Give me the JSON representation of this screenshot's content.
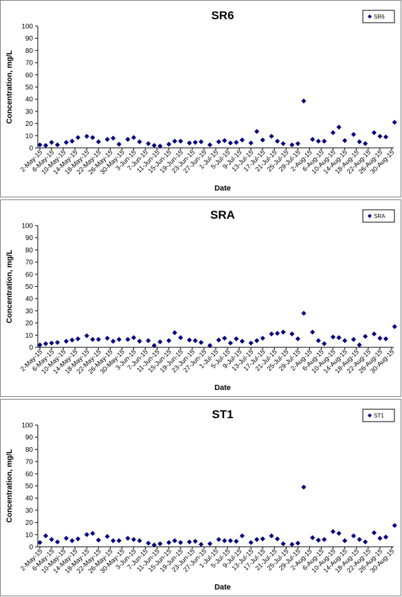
{
  "chart_data": [
    {
      "type": "scatter",
      "title": "SR6",
      "xlabel": "Date",
      "ylabel": "Concentration, mg/L",
      "ylim": [
        0,
        100
      ],
      "yticks": [
        0,
        10,
        20,
        30,
        40,
        50,
        60,
        70,
        80,
        90,
        100
      ],
      "grid": false,
      "legend_position": "top-right",
      "xticks": [
        "2-May-15",
        "6-May-15",
        "10-May-15",
        "14-May-15",
        "18-May-15",
        "22-May-15",
        "26-May-15",
        "30-May-15",
        "3-Jun-15",
        "7-Jun-15",
        "11-Jun-15",
        "15-Jun-15",
        "19-Jun-15",
        "23-Jun-15",
        "27-Jun-15",
        "1-Jul-15",
        "5-Jul-15",
        "9-Jul-15",
        "13-Jul-15",
        "17-Jul-15",
        "21-Jul-15",
        "25-Jul-15",
        "29-Jul-15",
        "2-Aug-15",
        "6-Aug-15",
        "10-Aug-15",
        "14-Aug-15",
        "18-Aug-15",
        "22-Aug-15",
        "26-Aug-15",
        "30-Aug-15"
      ],
      "series": [
        {
          "name": "SR6",
          "color": "#000080",
          "marker": "diamond",
          "points": [
            [
              "2-May-15",
              2.5
            ],
            [
              "4-May-15",
              2
            ],
            [
              "6-May-15",
              4.5
            ],
            [
              "8-May-15",
              2.5
            ],
            [
              "11-May-15",
              4.5
            ],
            [
              "13-May-15",
              5.5
            ],
            [
              "15-May-15",
              8.5
            ],
            [
              "18-May-15",
              9.5
            ],
            [
              "20-May-15",
              8.5
            ],
            [
              "22-May-15",
              5
            ],
            [
              "25-May-15",
              7
            ],
            [
              "27-May-15",
              8
            ],
            [
              "29-May-15",
              3
            ],
            [
              "1-Jun-15",
              7
            ],
            [
              "3-Jun-15",
              8.5
            ],
            [
              "5-Jun-15",
              5
            ],
            [
              "8-Jun-15",
              3.5
            ],
            [
              "10-Jun-15",
              2
            ],
            [
              "12-Jun-15",
              1.5
            ],
            [
              "15-Jun-15",
              3
            ],
            [
              "17-Jun-15",
              5.5
            ],
            [
              "19-Jun-15",
              5.5
            ],
            [
              "22-Jun-15",
              4
            ],
            [
              "24-Jun-15",
              4.5
            ],
            [
              "26-Jun-15",
              5
            ],
            [
              "29-Jun-15",
              2.5
            ],
            [
              "2-Jul-15",
              5
            ],
            [
              "4-Jul-15",
              6
            ],
            [
              "6-Jul-15",
              4
            ],
            [
              "8-Jul-15",
              4.5
            ],
            [
              "10-Jul-15",
              6.5
            ],
            [
              "13-Jul-15",
              4
            ],
            [
              "15-Jul-15",
              13.5
            ],
            [
              "17-Jul-15",
              6.5
            ],
            [
              "20-Jul-15",
              9.5
            ],
            [
              "22-Jul-15",
              5.5
            ],
            [
              "24-Jul-15",
              3.5
            ],
            [
              "27-Jul-15",
              2.5
            ],
            [
              "29-Jul-15",
              3.5
            ],
            [
              "31-Jul-15",
              38.5
            ],
            [
              "3-Aug-15",
              7
            ],
            [
              "5-Aug-15",
              5.5
            ],
            [
              "7-Aug-15",
              5.5
            ],
            [
              "10-Aug-15",
              12.5
            ],
            [
              "12-Aug-15",
              17
            ],
            [
              "14-Aug-15",
              6
            ],
            [
              "17-Aug-15",
              11
            ],
            [
              "19-Aug-15",
              5
            ],
            [
              "21-Aug-15",
              3.5
            ],
            [
              "24-Aug-15",
              12.5
            ],
            [
              "26-Aug-15",
              9.5
            ],
            [
              "28-Aug-15",
              9
            ],
            [
              "31-Aug-15",
              21
            ]
          ]
        }
      ]
    },
    {
      "type": "scatter",
      "title": "SRA",
      "xlabel": "Date",
      "ylabel": "Concentration, mg/L",
      "ylim": [
        0,
        100
      ],
      "yticks": [
        0,
        10,
        20,
        30,
        40,
        50,
        60,
        70,
        80,
        90,
        100
      ],
      "grid": false,
      "legend_position": "top-right",
      "xticks": [
        "2-May-15",
        "6-May-15",
        "10-May-15",
        "14-May-15",
        "18-May-15",
        "22-May-15",
        "26-May-15",
        "30-May-15",
        "3-Jun-15",
        "7-Jun-15",
        "11-Jun-15",
        "15-Jun-15",
        "19-Jun-15",
        "23-Jun-15",
        "27-Jun-15",
        "1-Jul-15",
        "5-Jul-15",
        "9-Jul-15",
        "13-Jul-15",
        "17-Jul-15",
        "21-Jul-15",
        "25-Jul-15",
        "29-Jul-15",
        "2-Aug-15",
        "6-Aug-15",
        "10-Aug-15",
        "14-Aug-15",
        "18-Aug-15",
        "22-Aug-15",
        "26-Aug-15",
        "30-Aug-15"
      ],
      "series": [
        {
          "name": "SRA",
          "color": "#000080",
          "marker": "diamond",
          "points": [
            [
              "2-May-15",
              2
            ],
            [
              "4-May-15",
              3
            ],
            [
              "6-May-15",
              3.5
            ],
            [
              "8-May-15",
              4
            ],
            [
              "11-May-15",
              5
            ],
            [
              "13-May-15",
              6
            ],
            [
              "15-May-15",
              7
            ],
            [
              "18-May-15",
              9.5
            ],
            [
              "20-May-15",
              6.5
            ],
            [
              "22-May-15",
              6.5
            ],
            [
              "25-May-15",
              7.5
            ],
            [
              "27-May-15",
              5
            ],
            [
              "29-May-15",
              6.5
            ],
            [
              "1-Jun-15",
              6.5
            ],
            [
              "3-Jun-15",
              8
            ],
            [
              "5-Jun-15",
              5
            ],
            [
              "8-Jun-15",
              5.5
            ],
            [
              "10-Jun-15",
              1.5
            ],
            [
              "12-Jun-15",
              4.5
            ],
            [
              "15-Jun-15",
              5.5
            ],
            [
              "17-Jun-15",
              12
            ],
            [
              "19-Jun-15",
              8
            ],
            [
              "22-Jun-15",
              6
            ],
            [
              "24-Jun-15",
              5.5
            ],
            [
              "26-Jun-15",
              4
            ],
            [
              "29-Jun-15",
              1.5
            ],
            [
              "2-Jul-15",
              6
            ],
            [
              "4-Jul-15",
              7.5
            ],
            [
              "6-Jul-15",
              3.5
            ],
            [
              "8-Jul-15",
              7
            ],
            [
              "10-Jul-15",
              5
            ],
            [
              "13-Jul-15",
              3.5
            ],
            [
              "15-Jul-15",
              5.5
            ],
            [
              "17-Jul-15",
              7.5
            ],
            [
              "20-Jul-15",
              11
            ],
            [
              "22-Jul-15",
              11.5
            ],
            [
              "24-Jul-15",
              12.5
            ],
            [
              "27-Jul-15",
              11
            ],
            [
              "29-Jul-15",
              7
            ],
            [
              "31-Jul-15",
              28
            ],
            [
              "3-Aug-15",
              12.5
            ],
            [
              "5-Aug-15",
              5.5
            ],
            [
              "7-Aug-15",
              3
            ],
            [
              "10-Aug-15",
              8.5
            ],
            [
              "12-Aug-15",
              8
            ],
            [
              "14-Aug-15",
              5.5
            ],
            [
              "17-Aug-15",
              6.5
            ],
            [
              "19-Aug-15",
              2
            ],
            [
              "21-Aug-15",
              9
            ],
            [
              "24-Aug-15",
              11
            ],
            [
              "26-Aug-15",
              7.5
            ],
            [
              "28-Aug-15",
              7
            ],
            [
              "31-Aug-15",
              17
            ]
          ]
        }
      ]
    },
    {
      "type": "scatter",
      "title": "ST1",
      "xlabel": "Date",
      "ylabel": "Concentration, mg/L",
      "ylim": [
        0,
        100
      ],
      "yticks": [
        0,
        10,
        20,
        30,
        40,
        50,
        60,
        70,
        80,
        90,
        100
      ],
      "grid": false,
      "legend_position": "top-right",
      "xticks": [
        "2-May-15",
        "6-May-15",
        "10-May-15",
        "14-May-15",
        "18-May-15",
        "22-May-15",
        "26-May-15",
        "30-May-15",
        "3-Jun-15",
        "7-Jun-15",
        "11-Jun-15",
        "15-Jun-15",
        "19-Jun-15",
        "23-Jun-15",
        "27-Jun-15",
        "1-Jul-15",
        "5-Jul-15",
        "9-Jul-15",
        "13-Jul-15",
        "17-Jul-15",
        "21-Jul-15",
        "25-Jul-15",
        "29-Jul-15",
        "2-Aug-15",
        "6-Aug-15",
        "10-Aug-15",
        "14-Aug-15",
        "18-Aug-15",
        "22-Aug-15",
        "26-Aug-15",
        "30-Aug-15"
      ],
      "series": [
        {
          "name": "ST1",
          "color": "#000080",
          "marker": "diamond",
          "points": [
            [
              "2-May-15",
              3.5
            ],
            [
              "4-May-15",
              9
            ],
            [
              "6-May-15",
              6
            ],
            [
              "8-May-15",
              4
            ],
            [
              "11-May-15",
              7
            ],
            [
              "13-May-15",
              5
            ],
            [
              "15-May-15",
              6.5
            ],
            [
              "18-May-15",
              10
            ],
            [
              "20-May-15",
              11
            ],
            [
              "22-May-15",
              5.5
            ],
            [
              "25-May-15",
              8.5
            ],
            [
              "27-May-15",
              5
            ],
            [
              "29-May-15",
              5
            ],
            [
              "1-Jun-15",
              7
            ],
            [
              "3-Jun-15",
              6
            ],
            [
              "5-Jun-15",
              5
            ],
            [
              "8-Jun-15",
              3
            ],
            [
              "10-Jun-15",
              1.5
            ],
            [
              "12-Jun-15",
              2.5
            ],
            [
              "15-Jun-15",
              3.5
            ],
            [
              "17-Jun-15",
              5
            ],
            [
              "19-Jun-15",
              3.5
            ],
            [
              "22-Jun-15",
              4
            ],
            [
              "24-Jun-15",
              4.5
            ],
            [
              "26-Jun-15",
              2
            ],
            [
              "29-Jun-15",
              2.5
            ],
            [
              "2-Jul-15",
              6
            ],
            [
              "4-Jul-15",
              5
            ],
            [
              "6-Jul-15",
              5
            ],
            [
              "8-Jul-15",
              4.5
            ],
            [
              "10-Jul-15",
              9
            ],
            [
              "13-Jul-15",
              3.5
            ],
            [
              "15-Jul-15",
              6
            ],
            [
              "17-Jul-15",
              6.5
            ],
            [
              "20-Jul-15",
              9
            ],
            [
              "22-Jul-15",
              6.5
            ],
            [
              "24-Jul-15",
              2.5
            ],
            [
              "27-Jul-15",
              2
            ],
            [
              "29-Jul-15",
              3
            ],
            [
              "31-Jul-15",
              49
            ],
            [
              "3-Aug-15",
              7.5
            ],
            [
              "5-Aug-15",
              5.5
            ],
            [
              "7-Aug-15",
              6
            ],
            [
              "10-Aug-15",
              12.5
            ],
            [
              "12-Aug-15",
              11
            ],
            [
              "14-Aug-15",
              5
            ],
            [
              "17-Aug-15",
              9
            ],
            [
              "19-Aug-15",
              6
            ],
            [
              "21-Aug-15",
              4
            ],
            [
              "24-Aug-15",
              11.5
            ],
            [
              "26-Aug-15",
              7
            ],
            [
              "28-Aug-15",
              8
            ],
            [
              "31-Aug-15",
              17.5
            ]
          ]
        }
      ]
    }
  ]
}
